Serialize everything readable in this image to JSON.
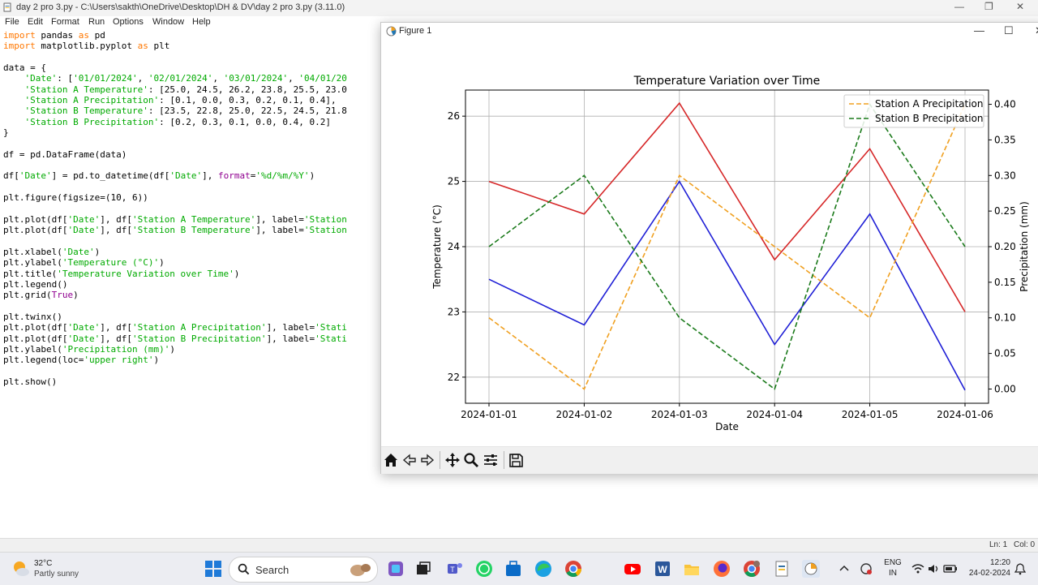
{
  "idle": {
    "title": "day 2 pro 3.py - C:\\Users\\sakth\\OneDrive\\Desktop\\DH & DV\\day 2 pro 3.py (3.11.0)",
    "menu": [
      "File",
      "Edit",
      "Format",
      "Run",
      "Options",
      "Window",
      "Help"
    ],
    "status_line": "Ln: 1",
    "status_col": "Col: 0"
  },
  "code_lines": [
    "import pandas as pd",
    "import matplotlib.pyplot as plt",
    "",
    "data = {",
    "    'Date': ['01/01/2024', '02/01/2024', '03/01/2024', '04/01/20",
    "    'Station A Temperature': [25.0, 24.5, 26.2, 23.8, 25.5, 23.0",
    "    'Station A Precipitation': [0.1, 0.0, 0.3, 0.2, 0.1, 0.4],",
    "    'Station B Temperature': [23.5, 22.8, 25.0, 22.5, 24.5, 21.8",
    "    'Station B Precipitation': [0.2, 0.3, 0.1, 0.0, 0.4, 0.2]",
    "}",
    "",
    "df = pd.DataFrame(data)",
    "",
    "df['Date'] = pd.to_datetime(df['Date'], format='%d/%m/%Y')",
    "",
    "plt.figure(figsize=(10, 6))",
    "",
    "plt.plot(df['Date'], df['Station A Temperature'], label='Station",
    "plt.plot(df['Date'], df['Station B Temperature'], label='Station",
    "",
    "plt.xlabel('Date')",
    "plt.ylabel('Temperature (°C)')",
    "plt.title('Temperature Variation over Time')",
    "plt.legend()",
    "plt.grid(True)",
    "",
    "plt.twinx()",
    "plt.plot(df['Date'], df['Station A Precipitation'], label='Stati",
    "plt.plot(df['Date'], df['Station B Precipitation'], label='Stati",
    "plt.ylabel('Precipitation (mm)')",
    "plt.legend(loc='upper right')",
    "",
    "plt.show()"
  ],
  "figure": {
    "title": "Figure 1",
    "toolbar_icons": [
      "home-icon",
      "back-arrow-icon",
      "forward-arrow-icon",
      "pan-icon",
      "zoom-icon",
      "configure-subplots-icon",
      "save-icon"
    ]
  },
  "chart_data": {
    "type": "line",
    "title": "Temperature Variation over Time",
    "xlabel": "Date",
    "ylabel": "Temperature (°C)",
    "y2label": "Precipitation (mm)",
    "categories": [
      "2024-01-01",
      "2024-01-02",
      "2024-01-03",
      "2024-01-04",
      "2024-01-05",
      "2024-01-06"
    ],
    "ylim": [
      21.6,
      26.4
    ],
    "yticks": [
      22,
      23,
      24,
      25,
      26
    ],
    "y2lim": [
      -0.02,
      0.42
    ],
    "y2ticks": [
      "0.00",
      "0.05",
      "0.10",
      "0.15",
      "0.20",
      "0.25",
      "0.30",
      "0.35",
      "0.40"
    ],
    "grid": true,
    "legend_position": "upper-right",
    "series": [
      {
        "axis": "left",
        "color": "#d62728",
        "dash": "solid",
        "values": [
          25.0,
          24.5,
          26.2,
          23.8,
          25.5,
          23.0
        ]
      },
      {
        "axis": "left",
        "color": "#1f1fd6",
        "dash": "solid",
        "values": [
          23.5,
          22.8,
          25.0,
          22.5,
          24.5,
          21.8
        ]
      },
      {
        "axis": "right",
        "name": "Station A Precipitation",
        "color": "#f0a020",
        "dash": "dashed",
        "values": [
          0.1,
          0.0,
          0.3,
          0.2,
          0.1,
          0.4
        ]
      },
      {
        "axis": "right",
        "name": "Station B Precipitation",
        "color": "#1a7a1a",
        "dash": "dashed",
        "values": [
          0.2,
          0.3,
          0.1,
          0.0,
          0.4,
          0.2
        ]
      }
    ]
  },
  "taskbar": {
    "weather_temp": "32°C",
    "weather_desc": "Partly sunny",
    "search_label": "Search",
    "lang_1": "ENG",
    "lang_2": "IN",
    "time": "12:20",
    "date": "24-02-2024",
    "apps": [
      "widgets-icon",
      "start-icon",
      "task-view-icon",
      "teams-icon",
      "whatsapp-icon",
      "store-icon",
      "edge-icon",
      "chrome-icon",
      "youtube-icon",
      "word-icon",
      "file-explorer-icon",
      "firefox-icon",
      "chrome-profile-icon",
      "idle-icon",
      "python-figure-icon"
    ]
  }
}
